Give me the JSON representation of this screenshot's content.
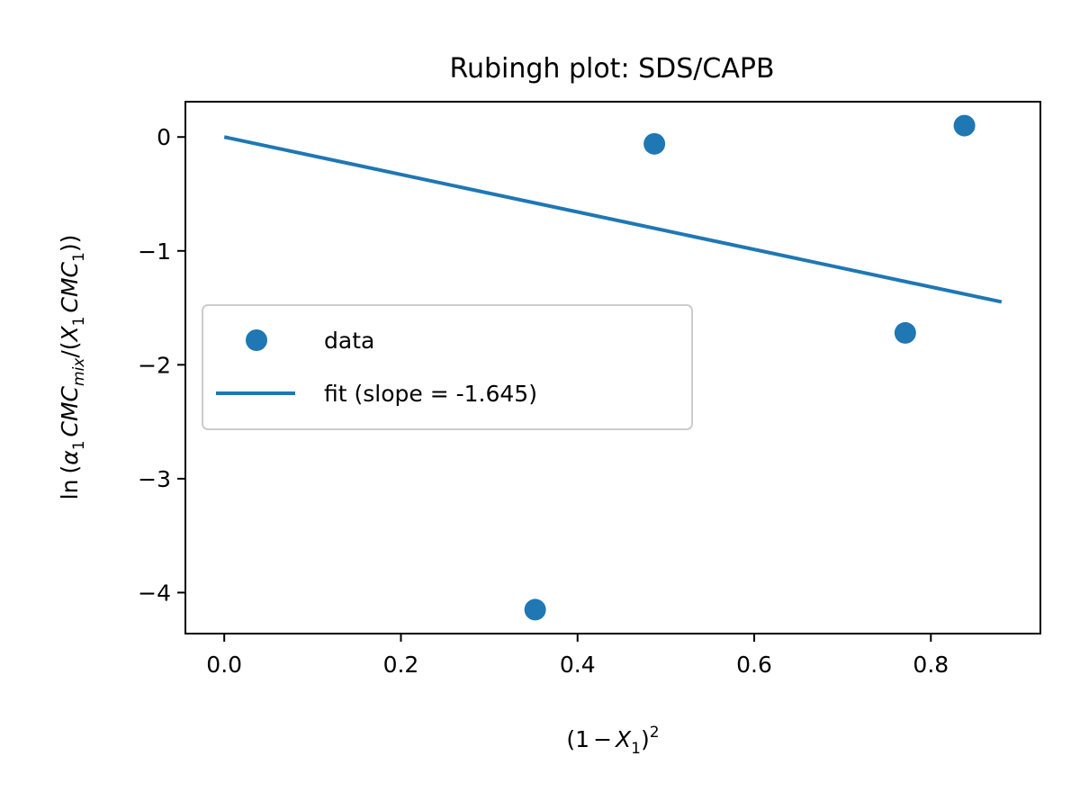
{
  "chart_data": {
    "type": "scatter",
    "title": "Rubingh plot: SDS/CAPB",
    "xlabel": "(1 − X₁)²",
    "ylabel": "ln (α₁ CMC_mix/(X₁ CMC₁))",
    "xlim": [
      -0.044,
      0.924
    ],
    "ylim": [
      -4.36,
      0.31
    ],
    "xticks": [
      0.0,
      0.2,
      0.4,
      0.6,
      0.8
    ],
    "xtick_labels": [
      "0.0",
      "0.2",
      "0.4",
      "0.6",
      "0.8"
    ],
    "yticks": [
      0,
      -1,
      -2,
      -3,
      -4
    ],
    "ytick_labels": [
      "0",
      "−1",
      "−2",
      "−3",
      "−4"
    ],
    "series": [
      {
        "name": "data",
        "kind": "scatter",
        "color": "#1f77b4",
        "x": [
          0.352,
          0.487,
          0.771,
          0.838
        ],
        "y": [
          -4.15,
          -0.06,
          -1.72,
          0.1
        ]
      },
      {
        "name": "fit (slope = -1.645)",
        "kind": "line",
        "color": "#1f77b4",
        "slope": -1.645,
        "x": [
          0.0,
          0.88
        ],
        "y": [
          0.0,
          -1.448
        ]
      }
    ],
    "legend_position": "center-left",
    "grid": false
  }
}
